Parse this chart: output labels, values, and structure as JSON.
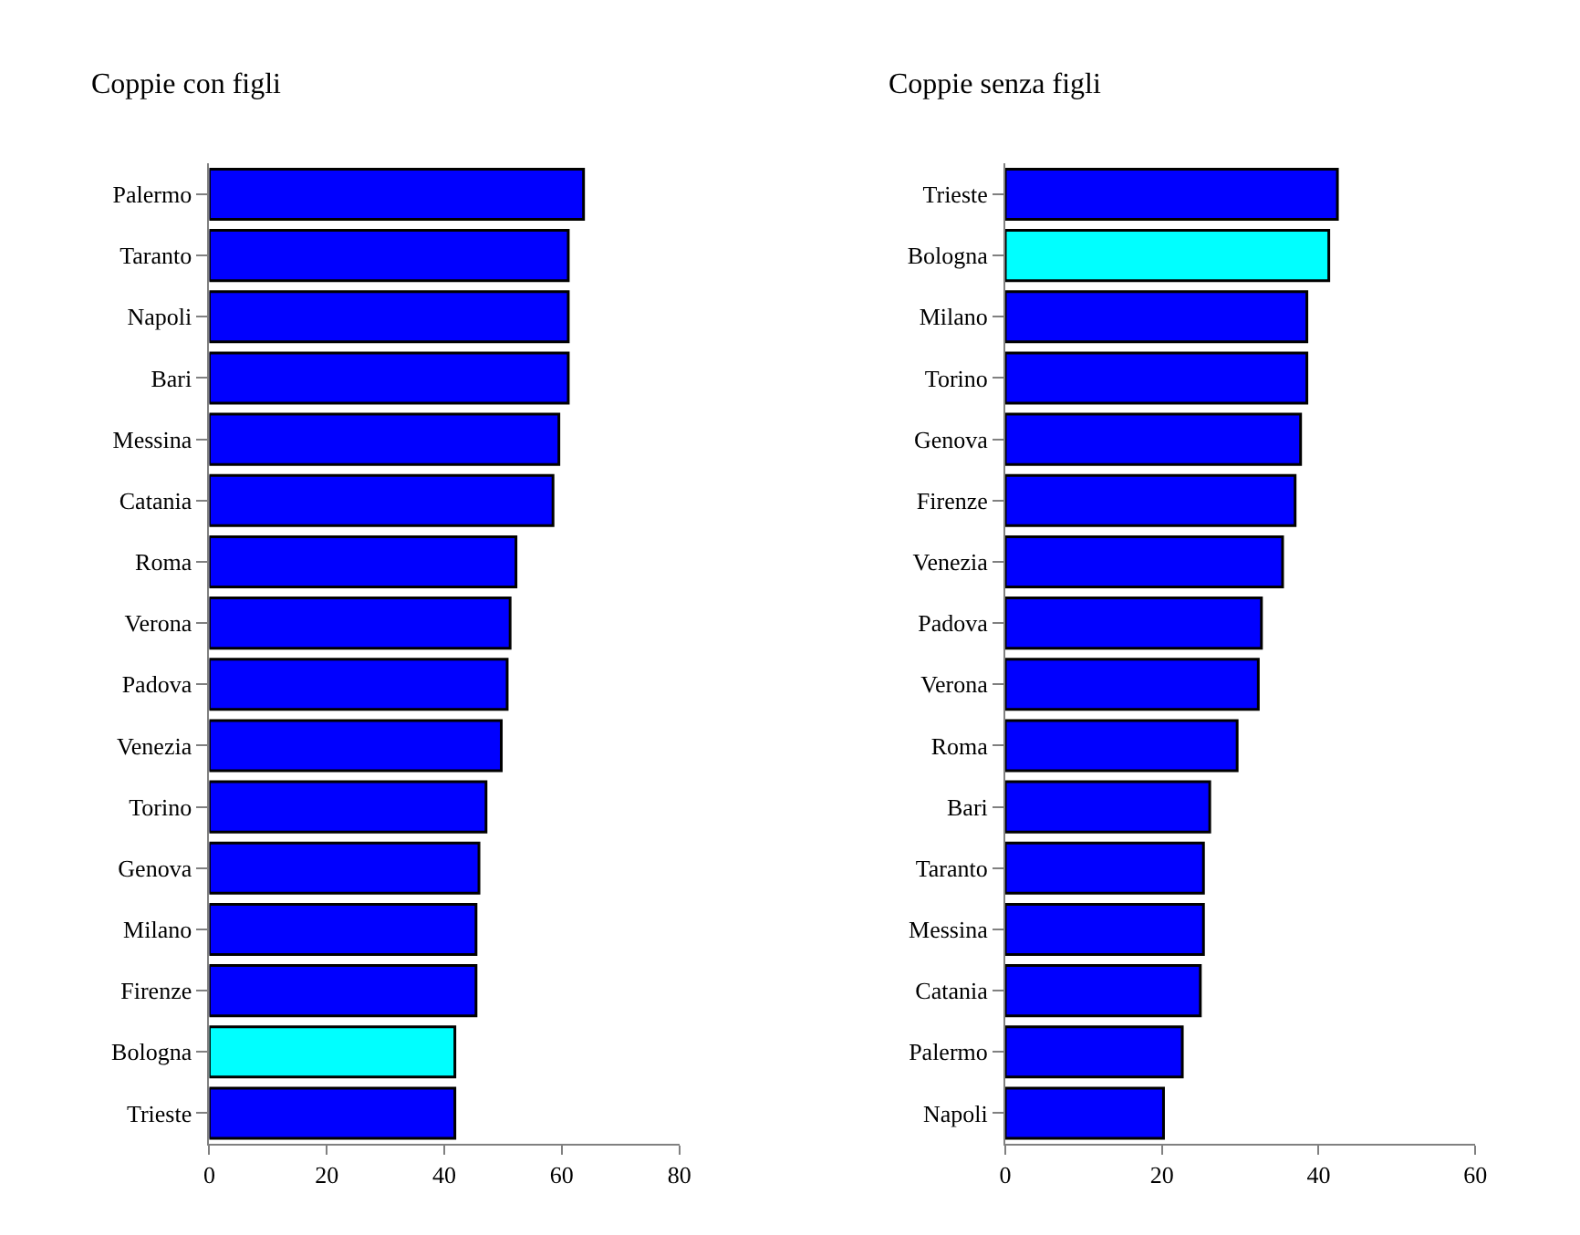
{
  "chart_data": [
    {
      "type": "bar",
      "orientation": "horizontal",
      "title": "Coppie con figli",
      "categories": [
        "Palermo",
        "Taranto",
        "Napoli",
        "Bari",
        "Messina",
        "Catania",
        "Roma",
        "Verona",
        "Padova",
        "Venezia",
        "Torino",
        "Genova",
        "Milano",
        "Firenze",
        "Bologna",
        "Trieste"
      ],
      "values": [
        63.7,
        61.1,
        61.1,
        61.1,
        59.5,
        58.5,
        52.2,
        51.2,
        50.7,
        49.7,
        47.1,
        45.9,
        45.4,
        45.4,
        41.8,
        41.8
      ],
      "colors": [
        "#0000ff",
        "#0000ff",
        "#0000ff",
        "#0000ff",
        "#0000ff",
        "#0000ff",
        "#0000ff",
        "#0000ff",
        "#0000ff",
        "#0000ff",
        "#0000ff",
        "#0000ff",
        "#0000ff",
        "#0000ff",
        "#00ffff",
        "#0000ff"
      ],
      "xlim": [
        0,
        80
      ],
      "xticks": [
        0,
        20,
        40,
        60,
        80
      ]
    },
    {
      "type": "bar",
      "orientation": "horizontal",
      "title": "Coppie senza figli",
      "categories": [
        "Trieste",
        "Bologna",
        "Milano",
        "Torino",
        "Genova",
        "Firenze",
        "Venezia",
        "Padova",
        "Verona",
        "Roma",
        "Bari",
        "Taranto",
        "Messina",
        "Catania",
        "Palermo",
        "Napoli"
      ],
      "values": [
        42.4,
        41.3,
        38.5,
        38.5,
        37.7,
        37.0,
        35.4,
        32.7,
        32.3,
        29.6,
        26.1,
        25.3,
        25.3,
        24.9,
        22.6,
        20.2
      ],
      "colors": [
        "#0000ff",
        "#00ffff",
        "#0000ff",
        "#0000ff",
        "#0000ff",
        "#0000ff",
        "#0000ff",
        "#0000ff",
        "#0000ff",
        "#0000ff",
        "#0000ff",
        "#0000ff",
        "#0000ff",
        "#0000ff",
        "#0000ff",
        "#0000ff"
      ],
      "xlim": [
        0,
        60
      ],
      "xticks": [
        0,
        20,
        40,
        60
      ]
    }
  ]
}
